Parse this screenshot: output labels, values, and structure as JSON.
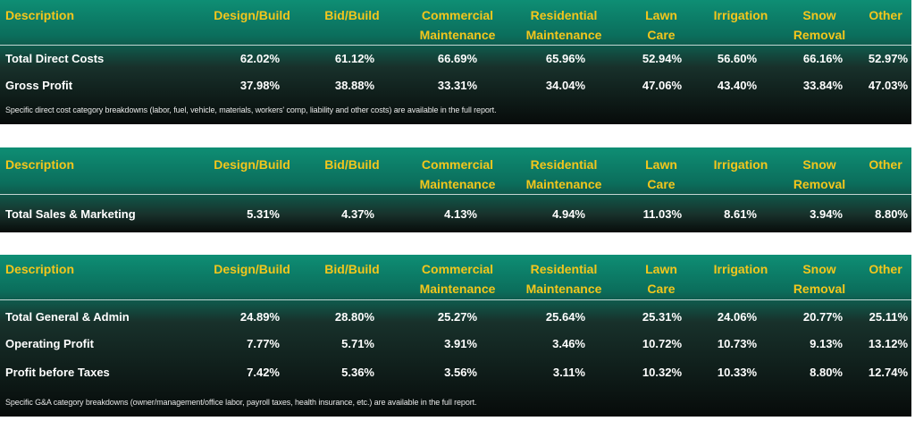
{
  "tables": [
    {
      "headers": [
        "Description",
        "Design/Build",
        "Bid/Build",
        "Commercial Maintenance",
        "Residential Maintenance",
        "Lawn Care",
        "Irrigation",
        "Snow Removal",
        "Other"
      ],
      "rows": [
        {
          "label": "Total Direct Costs",
          "values": [
            "62.02%",
            "61.12%",
            "66.69%",
            "65.96%",
            "52.94%",
            "56.60%",
            "66.16%",
            "52.97%"
          ]
        },
        {
          "label": "Gross Profit",
          "values": [
            "37.98%",
            "38.88%",
            "33.31%",
            "34.04%",
            "47.06%",
            "43.40%",
            "33.84%",
            "47.03%"
          ]
        }
      ],
      "note": "Specific direct cost category breakdowns (labor, fuel, vehicle, materials, workers' comp, liability and other costs) are available in the full report."
    },
    {
      "headers": [
        "Description",
        "Design/Build",
        "Bid/Build",
        "Commercial Maintenance",
        "Residential Maintenance",
        "Lawn Care",
        "Irrigation",
        "Snow Removal",
        "Other"
      ],
      "rows": [
        {
          "label": "Total Sales & Marketing",
          "values": [
            "5.31%",
            "4.37%",
            "4.13%",
            "4.94%",
            "11.03%",
            "8.61%",
            "3.94%",
            "8.80%"
          ]
        }
      ],
      "note": ""
    },
    {
      "headers": [
        "Description",
        "Design/Build",
        "Bid/Build",
        "Commercial Maintenance",
        "Residential Maintenance",
        "Lawn Care",
        "Irrigation",
        "Snow Removal",
        "Other"
      ],
      "rows": [
        {
          "label": "Total General & Admin",
          "values": [
            "24.89%",
            "28.80%",
            "25.27%",
            "25.64%",
            "25.31%",
            "24.06%",
            "20.77%",
            "25.11%"
          ]
        },
        {
          "label": "Operating Profit",
          "values": [
            "7.77%",
            "5.71%",
            "3.91%",
            "3.46%",
            "10.72%",
            "10.73%",
            "9.13%",
            "13.12%"
          ]
        },
        {
          "label": "Profit before Taxes",
          "values": [
            "7.42%",
            "5.36%",
            "3.56%",
            "3.11%",
            "10.32%",
            "10.33%",
            "8.80%",
            "12.74%"
          ]
        }
      ],
      "note": "Specific G&A category breakdowns (owner/management/office labor, payroll taxes, health insurance, etc.) are available in the full report."
    }
  ],
  "colors": {
    "header_text": "#f3c61c",
    "body_text": "#ffffff",
    "panel_top": "#0e8e74",
    "panel_bottom": "#070b0a"
  }
}
